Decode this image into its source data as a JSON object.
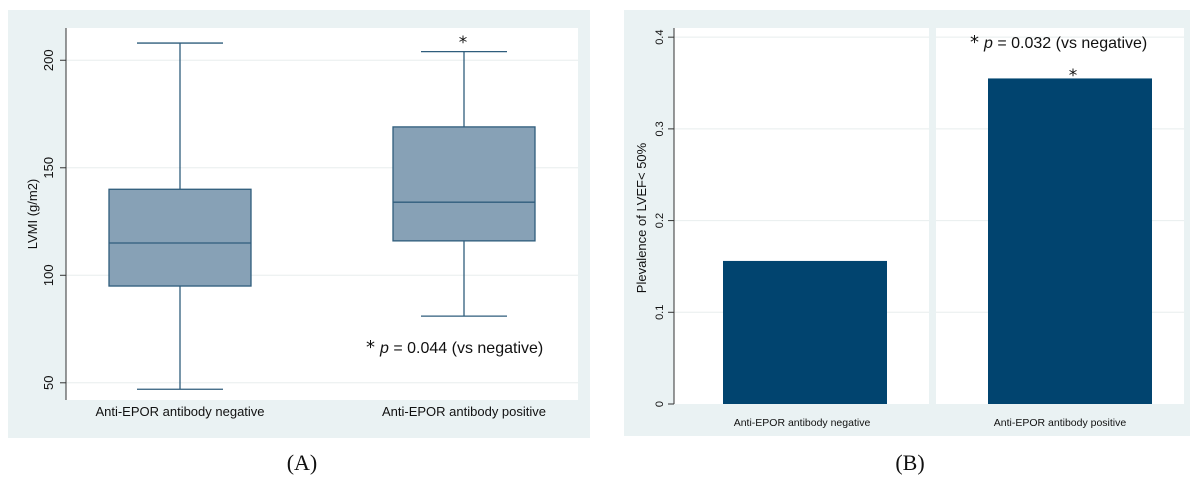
{
  "chart_data": [
    {
      "panel": "A",
      "type": "box",
      "ylabel": "LVMI (g/m2)",
      "ylim": [
        42,
        215
      ],
      "yticks": [
        50,
        100,
        150,
        200
      ],
      "grid": true,
      "categories": [
        "Anti-EPOR antibody negative",
        "Anti-EPOR antibody positive"
      ],
      "boxes": [
        {
          "category": "Anti-EPOR antibody negative",
          "min": 47,
          "q1": 95,
          "median": 115,
          "q3": 140,
          "max": 208
        },
        {
          "category": "Anti-EPOR antibody positive",
          "min": 81,
          "q1": 116,
          "median": 134,
          "q3": 169,
          "max": 204
        }
      ],
      "significance_marker": "*",
      "annotation": {
        "star": "*",
        "p_label": "p",
        "text": " = 0.044 (vs negative)"
      }
    },
    {
      "panel": "B",
      "type": "bar",
      "ylabel": "Plevalence of  LVEF< 50%",
      "ylim": [
        0,
        0.41
      ],
      "yticks": [
        0,
        0.1,
        0.2,
        0.3,
        0.4
      ],
      "ytick_labels": [
        "0",
        "0.1",
        "0.2",
        "0.3",
        "0.4"
      ],
      "grid": true,
      "categories": [
        "Anti-EPOR antibody negative",
        "Anti-EPOR antibody positive"
      ],
      "values": [
        0.156,
        0.355
      ],
      "significance_marker": "*",
      "annotation": {
        "star": "*",
        "p_label": "p",
        "text": " = 0.032 (vs negative)"
      }
    }
  ],
  "panel_labels": {
    "a": "(A)",
    "b": "(B)"
  },
  "colors": {
    "box_fill": "#87a1b6",
    "box_stroke": "#2f5d7c",
    "bar_fill": "#01446f",
    "panel_bg": "#eaf2f3",
    "plot_bg": "#ffffff",
    "grid": "#e8eeee"
  }
}
